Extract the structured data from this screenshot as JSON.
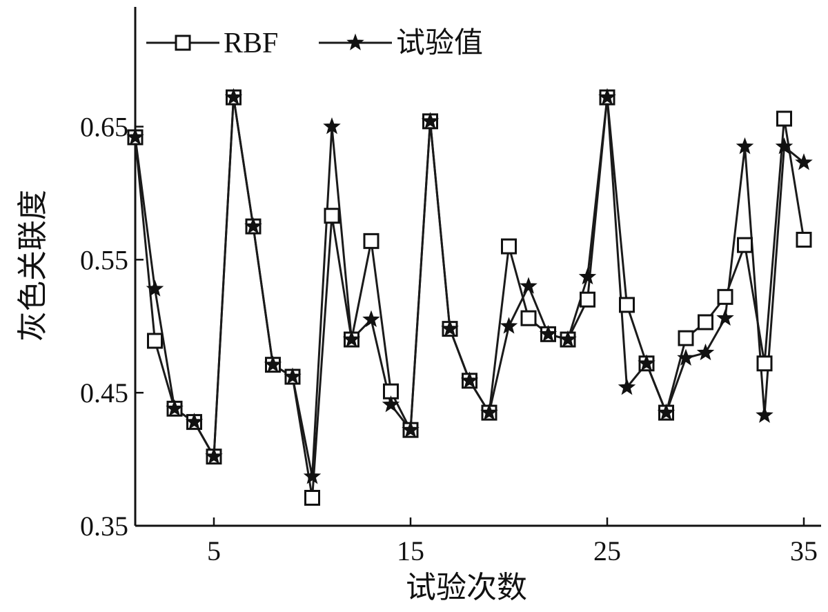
{
  "chart_data": {
    "type": "line",
    "xlabel": "试验次数",
    "ylabel": "灰色关联度",
    "xlim": [
      1,
      36
    ],
    "ylim": [
      0.35,
      0.74
    ],
    "xticks": [
      5,
      15,
      25,
      35
    ],
    "xtick_labels": [
      "5",
      "15",
      "25",
      "35"
    ],
    "yticks": [
      0.35,
      0.45,
      0.55,
      0.65
    ],
    "ytick_labels": [
      "0.35",
      "0.45",
      "0.55",
      "0.65"
    ],
    "grid": false,
    "legend_position": "top-left",
    "x": [
      1,
      2,
      3,
      4,
      5,
      6,
      7,
      8,
      9,
      10,
      11,
      12,
      13,
      14,
      15,
      16,
      17,
      18,
      19,
      20,
      21,
      22,
      23,
      24,
      25,
      26,
      27,
      28,
      29,
      30,
      31,
      32,
      33,
      34,
      35
    ],
    "series": [
      {
        "name": "RBF",
        "marker": "square",
        "values": [
          0.642,
          0.489,
          0.438,
          0.428,
          0.402,
          0.672,
          0.575,
          0.471,
          0.462,
          0.371,
          0.583,
          0.49,
          0.564,
          0.451,
          0.422,
          0.654,
          0.498,
          0.459,
          0.435,
          0.56,
          0.506,
          0.494,
          0.49,
          0.52,
          0.672,
          0.516,
          0.472,
          0.435,
          0.491,
          0.503,
          0.522,
          0.561,
          0.472,
          0.656,
          0.565
        ]
      },
      {
        "name": "试验值",
        "marker": "star",
        "values": [
          0.642,
          0.528,
          0.438,
          0.428,
          0.402,
          0.672,
          0.575,
          0.471,
          0.462,
          0.387,
          0.65,
          0.49,
          0.505,
          0.441,
          0.422,
          0.654,
          0.498,
          0.459,
          0.435,
          0.5,
          0.53,
          0.494,
          0.49,
          0.537,
          0.672,
          0.454,
          0.472,
          0.435,
          0.476,
          0.48,
          0.506,
          0.635,
          0.433,
          0.635,
          0.623
        ]
      }
    ]
  }
}
